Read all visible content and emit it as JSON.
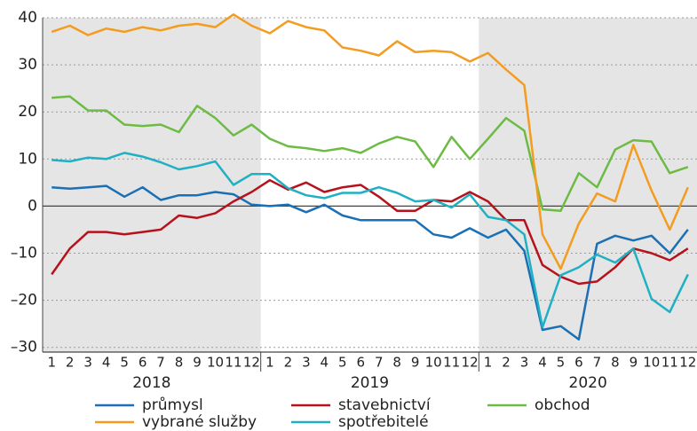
{
  "chart_data": {
    "type": "line",
    "categories": [
      "1",
      "2",
      "3",
      "4",
      "5",
      "6",
      "7",
      "8",
      "9",
      "10",
      "11",
      "12",
      "1",
      "2",
      "3",
      "4",
      "5",
      "6",
      "7",
      "8",
      "9",
      "10",
      "11",
      "12",
      "1",
      "2",
      "3",
      "4",
      "5",
      "6",
      "7",
      "8",
      "9",
      "10",
      "11",
      "12"
    ],
    "groups": [
      {
        "label": "2018",
        "shade": "#e5e5e5"
      },
      {
        "label": "2019",
        "shade": null
      },
      {
        "label": "2020",
        "shade": "#e5e5e5"
      }
    ],
    "series": [
      {
        "name": "průmysl",
        "color": "#1a6fb5",
        "values": [
          4,
          3.7,
          4,
          4.3,
          2,
          4,
          1.3,
          2.3,
          2.3,
          3,
          2.5,
          0.3,
          0,
          0.3,
          -1.3,
          0.3,
          -2,
          -3,
          -3,
          -3,
          -3,
          -6,
          -6.7,
          -4.7,
          -6.7,
          -5,
          -9.5,
          -26.3,
          -25.5,
          -28.3,
          -8,
          -6.3,
          -7.3,
          -6.3,
          -10,
          -5
        ]
      },
      {
        "name": "stavebnictví",
        "color": "#b5121b",
        "values": [
          -14.5,
          -9,
          -5.5,
          -5.5,
          -6,
          -5.5,
          -5,
          -2,
          -2.5,
          -1.5,
          1,
          3,
          5.5,
          3.5,
          5,
          3,
          4,
          4.5,
          2,
          -1,
          -1,
          1.3,
          1,
          3,
          1,
          -3,
          -3,
          -12.5,
          -15,
          -16.5,
          -16,
          -13,
          -9,
          -10,
          -11.5,
          -9
        ]
      },
      {
        "name": "obchod",
        "color": "#6dbb45",
        "values": [
          23,
          23.3,
          20.3,
          20.3,
          17.3,
          17,
          17.3,
          15.7,
          21.3,
          18.7,
          15,
          17.3,
          14.3,
          12.7,
          12.3,
          11.7,
          12.3,
          11.3,
          13.3,
          14.7,
          13.7,
          8.3,
          14.7,
          10,
          14.3,
          18.7,
          16,
          -0.7,
          -1,
          7,
          4,
          12,
          14,
          13.7,
          7,
          8.3
        ]
      },
      {
        "name": "vybrané služby",
        "color": "#f39c1f",
        "values": [
          37,
          38.3,
          36.3,
          37.7,
          37,
          38,
          37.3,
          38.3,
          38.7,
          38,
          40.7,
          38.3,
          36.7,
          39.3,
          38,
          37.3,
          33.7,
          33,
          32,
          35,
          32.7,
          33,
          32.7,
          30.7,
          32.5,
          29,
          25.7,
          -6,
          -13.3,
          -3.7,
          2.7,
          1,
          13,
          3.3,
          -5,
          4
        ]
      },
      {
        "name": "spotřebitelé",
        "color": "#1fb0c4",
        "values": [
          9.8,
          9.5,
          10.3,
          10,
          11.3,
          10.5,
          9.3,
          7.8,
          8.5,
          9.5,
          4.5,
          6.8,
          6.8,
          3.8,
          2.3,
          1.7,
          2.8,
          2.8,
          4,
          2.8,
          1,
          1.3,
          -0.3,
          2.5,
          -2.3,
          -3,
          -6,
          -25.7,
          -14.7,
          -13,
          -10.3,
          -12,
          -9,
          -19.7,
          -22.5,
          -14.5
        ]
      }
    ],
    "ylim": [
      -31,
      40
    ],
    "yticks": [
      {
        "value": -30,
        "label": "–30"
      },
      {
        "value": -20,
        "label": "–20"
      },
      {
        "value": -10,
        "label": "–10"
      },
      0,
      10,
      20,
      30,
      40
    ],
    "grid": true
  }
}
